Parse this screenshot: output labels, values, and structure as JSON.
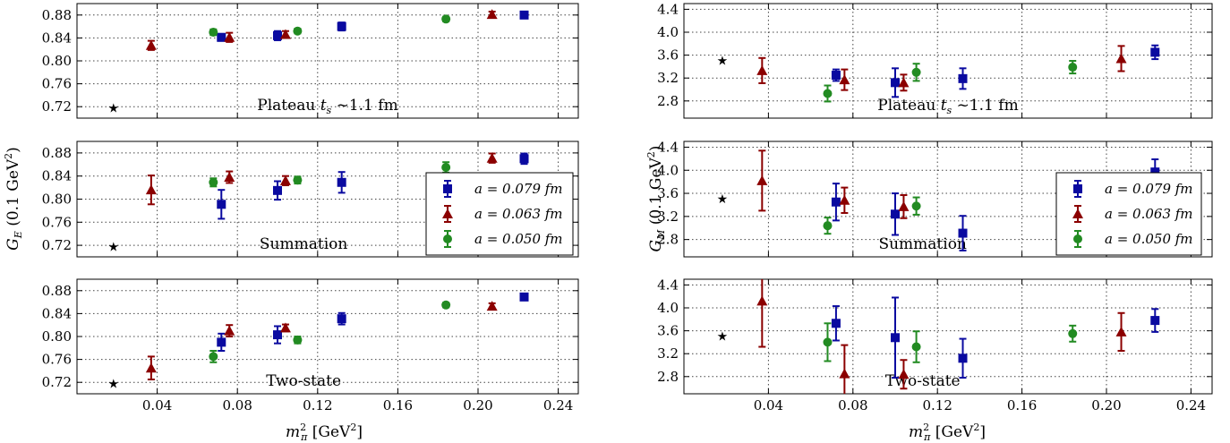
{
  "chart_data": [
    {
      "id": "GE-plateau",
      "type": "scatter",
      "panel": "left-top",
      "annotation": "Plateau t_s ~1.1 fm",
      "ylim": [
        0.7,
        0.9
      ],
      "yticks": [
        0.72,
        0.76,
        0.8,
        0.84,
        0.88
      ],
      "xlim": [
        0,
        0.25
      ],
      "xticks": [
        0.04,
        0.08,
        0.12,
        0.16,
        0.2,
        0.24
      ],
      "star": {
        "x": 0.0182,
        "y": 0.7178
      },
      "series": [
        {
          "marker": "square",
          "color": "#0a0aa0",
          "points": [
            {
              "x": 0.072,
              "y": 0.841,
              "err": 0.006
            },
            {
              "x": 0.1,
              "y": 0.844,
              "err": 0.008
            },
            {
              "x": 0.132,
              "y": 0.86,
              "err": 0.007
            },
            {
              "x": 0.223,
              "y": 0.88,
              "err": 0.003
            }
          ]
        },
        {
          "marker": "triangle",
          "color": "#8b0000",
          "points": [
            {
              "x": 0.037,
              "y": 0.827,
              "err": 0.008
            },
            {
              "x": 0.076,
              "y": 0.841,
              "err": 0.008
            },
            {
              "x": 0.104,
              "y": 0.846,
              "err": 0.006
            },
            {
              "x": 0.207,
              "y": 0.881,
              "err": 0.005
            }
          ]
        },
        {
          "marker": "circle",
          "color": "#228b22",
          "points": [
            {
              "x": 0.068,
              "y": 0.85,
              "err": 0.005
            },
            {
              "x": 0.11,
              "y": 0.852,
              "err": 0.004
            },
            {
              "x": 0.184,
              "y": 0.873,
              "err": 0.004
            }
          ]
        }
      ]
    },
    {
      "id": "GE-summation",
      "type": "scatter",
      "panel": "left-middle",
      "annotation": "Summation",
      "ylim": [
        0.7,
        0.9
      ],
      "yticks": [
        0.72,
        0.76,
        0.8,
        0.84,
        0.88
      ],
      "xlim": [
        0,
        0.25
      ],
      "xticks": [
        0.04,
        0.08,
        0.12,
        0.16,
        0.2,
        0.24
      ],
      "star": {
        "x": 0.0182,
        "y": 0.7178
      },
      "series": [
        {
          "marker": "square",
          "color": "#0a0aa0",
          "points": [
            {
              "x": 0.072,
              "y": 0.791,
              "err": 0.025
            },
            {
              "x": 0.1,
              "y": 0.815,
              "err": 0.016
            },
            {
              "x": 0.132,
              "y": 0.829,
              "err": 0.018
            },
            {
              "x": 0.223,
              "y": 0.87,
              "err": 0.009
            }
          ]
        },
        {
          "marker": "triangle",
          "color": "#8b0000",
          "points": [
            {
              "x": 0.037,
              "y": 0.816,
              "err": 0.025
            },
            {
              "x": 0.076,
              "y": 0.838,
              "err": 0.01
            },
            {
              "x": 0.104,
              "y": 0.832,
              "err": 0.008
            },
            {
              "x": 0.207,
              "y": 0.871,
              "err": 0.008
            }
          ]
        },
        {
          "marker": "circle",
          "color": "#228b22",
          "points": [
            {
              "x": 0.068,
              "y": 0.829,
              "err": 0.007
            },
            {
              "x": 0.11,
              "y": 0.833,
              "err": 0.006
            },
            {
              "x": 0.184,
              "y": 0.855,
              "err": 0.009
            }
          ]
        }
      ]
    },
    {
      "id": "GE-twostate",
      "type": "scatter",
      "panel": "left-bottom",
      "annotation": "Two-state",
      "ylim": [
        0.7,
        0.9
      ],
      "yticks": [
        0.72,
        0.76,
        0.8,
        0.84,
        0.88
      ],
      "xlim": [
        0,
        0.25
      ],
      "xticks": [
        0.04,
        0.08,
        0.12,
        0.16,
        0.2,
        0.24
      ],
      "star": {
        "x": 0.0182,
        "y": 0.7178
      },
      "series": [
        {
          "marker": "square",
          "color": "#0a0aa0",
          "points": [
            {
              "x": 0.072,
              "y": 0.79,
              "err": 0.015
            },
            {
              "x": 0.1,
              "y": 0.803,
              "err": 0.015
            },
            {
              "x": 0.132,
              "y": 0.831,
              "err": 0.01
            },
            {
              "x": 0.223,
              "y": 0.869,
              "err": 0.005
            }
          ]
        },
        {
          "marker": "triangle",
          "color": "#8b0000",
          "points": [
            {
              "x": 0.037,
              "y": 0.745,
              "err": 0.02
            },
            {
              "x": 0.076,
              "y": 0.81,
              "err": 0.01
            },
            {
              "x": 0.104,
              "y": 0.815,
              "err": 0.006
            },
            {
              "x": 0.207,
              "y": 0.853,
              "err": 0.005
            }
          ]
        },
        {
          "marker": "circle",
          "color": "#228b22",
          "points": [
            {
              "x": 0.068,
              "y": 0.765,
              "err": 0.01
            },
            {
              "x": 0.11,
              "y": 0.794,
              "err": 0.006
            },
            {
              "x": 0.184,
              "y": 0.855,
              "err": 0.004
            }
          ]
        }
      ]
    },
    {
      "id": "GM-plateau",
      "type": "scatter",
      "panel": "right-top",
      "annotation": "Plateau t_s ~1.1 fm",
      "ylim": [
        2.5,
        4.5
      ],
      "yticks": [
        2.8,
        3.2,
        3.6,
        4.0,
        4.4
      ],
      "xlim": [
        0,
        0.25
      ],
      "xticks": [
        0.04,
        0.08,
        0.12,
        0.16,
        0.2,
        0.24
      ],
      "star": {
        "x": 0.0182,
        "y": 3.51
      },
      "series": [
        {
          "marker": "square",
          "color": "#0a0aa0",
          "points": [
            {
              "x": 0.072,
              "y": 3.25,
              "err": 0.1
            },
            {
              "x": 0.1,
              "y": 3.12,
              "err": 0.25
            },
            {
              "x": 0.132,
              "y": 3.19,
              "err": 0.18
            },
            {
              "x": 0.223,
              "y": 3.65,
              "err": 0.12
            }
          ]
        },
        {
          "marker": "triangle",
          "color": "#8b0000",
          "points": [
            {
              "x": 0.037,
              "y": 3.33,
              "err": 0.22
            },
            {
              "x": 0.076,
              "y": 3.17,
              "err": 0.18
            },
            {
              "x": 0.104,
              "y": 3.12,
              "err": 0.14
            },
            {
              "x": 0.207,
              "y": 3.54,
              "err": 0.22
            }
          ]
        },
        {
          "marker": "circle",
          "color": "#228b22",
          "points": [
            {
              "x": 0.068,
              "y": 2.93,
              "err": 0.14
            },
            {
              "x": 0.11,
              "y": 3.3,
              "err": 0.15
            },
            {
              "x": 0.184,
              "y": 3.39,
              "err": 0.11
            }
          ]
        }
      ]
    },
    {
      "id": "GM-summation",
      "type": "scatter",
      "panel": "right-middle",
      "annotation": "Summation",
      "ylim": [
        2.5,
        4.5
      ],
      "yticks": [
        2.8,
        3.2,
        3.6,
        4.0,
        4.4
      ],
      "xlim": [
        0,
        0.25
      ],
      "xticks": [
        0.04,
        0.08,
        0.12,
        0.16,
        0.2,
        0.24
      ],
      "star": {
        "x": 0.0182,
        "y": 3.51
      },
      "series": [
        {
          "marker": "square",
          "color": "#0a0aa0",
          "points": [
            {
              "x": 0.072,
              "y": 3.45,
              "err": 0.32
            },
            {
              "x": 0.1,
              "y": 3.24,
              "err": 0.36
            },
            {
              "x": 0.132,
              "y": 2.91,
              "err": 0.3
            },
            {
              "x": 0.223,
              "y": 3.97,
              "err": 0.22
            }
          ]
        },
        {
          "marker": "triangle",
          "color": "#8b0000",
          "points": [
            {
              "x": 0.037,
              "y": 3.82,
              "err": 0.52
            },
            {
              "x": 0.076,
              "y": 3.48,
              "err": 0.22
            },
            {
              "x": 0.104,
              "y": 3.37,
              "err": 0.2
            },
            {
              "x": 0.207,
              "y": 3.6,
              "err": 0.32
            }
          ]
        },
        {
          "marker": "circle",
          "color": "#228b22",
          "points": [
            {
              "x": 0.068,
              "y": 3.04,
              "err": 0.14
            },
            {
              "x": 0.11,
              "y": 3.38,
              "err": 0.15
            },
            {
              "x": 0.184,
              "y": 2.88,
              "err": 0.14
            }
          ]
        }
      ]
    },
    {
      "id": "GM-twostate",
      "type": "scatter",
      "panel": "right-bottom",
      "annotation": "Two-state",
      "ylim": [
        2.5,
        4.5
      ],
      "yticks": [
        2.8,
        3.2,
        3.6,
        4.0,
        4.4
      ],
      "xlim": [
        0,
        0.25
      ],
      "xticks": [
        0.04,
        0.08,
        0.12,
        0.16,
        0.2,
        0.24
      ],
      "star": {
        "x": 0.0182,
        "y": 3.51
      },
      "series": [
        {
          "marker": "square",
          "color": "#0a0aa0",
          "points": [
            {
              "x": 0.072,
              "y": 3.73,
              "err": 0.3
            },
            {
              "x": 0.1,
              "y": 3.48,
              "err": 0.7
            },
            {
              "x": 0.132,
              "y": 3.12,
              "err": 0.34
            },
            {
              "x": 0.223,
              "y": 3.78,
              "err": 0.2
            }
          ]
        },
        {
          "marker": "triangle",
          "color": "#8b0000",
          "points": [
            {
              "x": 0.037,
              "y": 4.12,
              "err": 0.8
            },
            {
              "x": 0.076,
              "y": 2.85,
              "err": 0.5
            },
            {
              "x": 0.104,
              "y": 2.84,
              "err": 0.25
            },
            {
              "x": 0.207,
              "y": 3.58,
              "err": 0.33
            }
          ]
        },
        {
          "marker": "circle",
          "color": "#228b22",
          "points": [
            {
              "x": 0.068,
              "y": 3.4,
              "err": 0.33
            },
            {
              "x": 0.11,
              "y": 3.32,
              "err": 0.27
            },
            {
              "x": 0.184,
              "y": 3.55,
              "err": 0.14
            }
          ]
        }
      ]
    }
  ],
  "legend": {
    "entries": [
      {
        "label": "a = 0.079 fm",
        "marker": "square",
        "color": "#0a0aa0"
      },
      {
        "label": "a = 0.063 fm",
        "marker": "triangle",
        "color": "#8b0000"
      },
      {
        "label": "a = 0.050 fm",
        "marker": "circle",
        "color": "#228b22"
      }
    ],
    "placement": "right of middle panels"
  },
  "axes": {
    "xlabel": "m_π² [GeV²]",
    "ylabel_left": "G_E (0.1 GeV²)",
    "ylabel_right": "G_M (0.1 GeV²)"
  },
  "grid": "dotted",
  "star_color": "#000000"
}
